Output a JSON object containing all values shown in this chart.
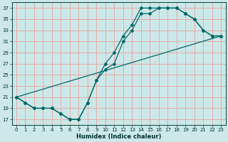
{
  "xlabel": "Humidex (Indice chaleur)",
  "background_color": "#cce8e8",
  "grid_color": "#e8aaaa",
  "line_color": "#006868",
  "xlim": [
    -0.5,
    23.5
  ],
  "ylim": [
    16.0,
    38.0
  ],
  "yticks": [
    17,
    19,
    21,
    23,
    25,
    27,
    29,
    31,
    33,
    35,
    37
  ],
  "xticks": [
    0,
    1,
    2,
    3,
    4,
    5,
    6,
    7,
    8,
    9,
    10,
    11,
    12,
    13,
    14,
    15,
    16,
    17,
    18,
    19,
    20,
    21,
    22,
    23
  ],
  "line1_x": [
    0,
    1,
    2,
    3,
    4,
    5,
    6,
    7,
    8,
    9,
    10,
    11,
    12,
    13,
    14,
    15,
    16,
    17,
    18,
    19,
    20,
    21,
    22,
    23
  ],
  "line1_y": [
    21,
    20,
    19,
    19,
    19,
    18,
    17,
    17,
    20,
    24,
    27,
    29,
    32,
    34,
    37,
    37,
    37,
    37,
    37,
    36,
    35,
    33,
    32,
    32
  ],
  "line2_x": [
    0,
    1,
    2,
    3,
    4,
    5,
    6,
    7,
    8,
    9,
    10,
    11,
    12,
    13,
    14,
    15,
    16,
    17,
    18,
    19,
    20,
    21,
    22,
    23
  ],
  "line2_y": [
    21,
    20,
    19,
    19,
    19,
    18,
    17,
    17,
    20,
    24,
    26,
    27,
    31,
    33,
    36,
    36,
    37,
    37,
    37,
    36,
    35,
    33,
    32,
    32
  ],
  "line3_x": [
    0,
    23
  ],
  "line3_y": [
    21,
    32
  ]
}
